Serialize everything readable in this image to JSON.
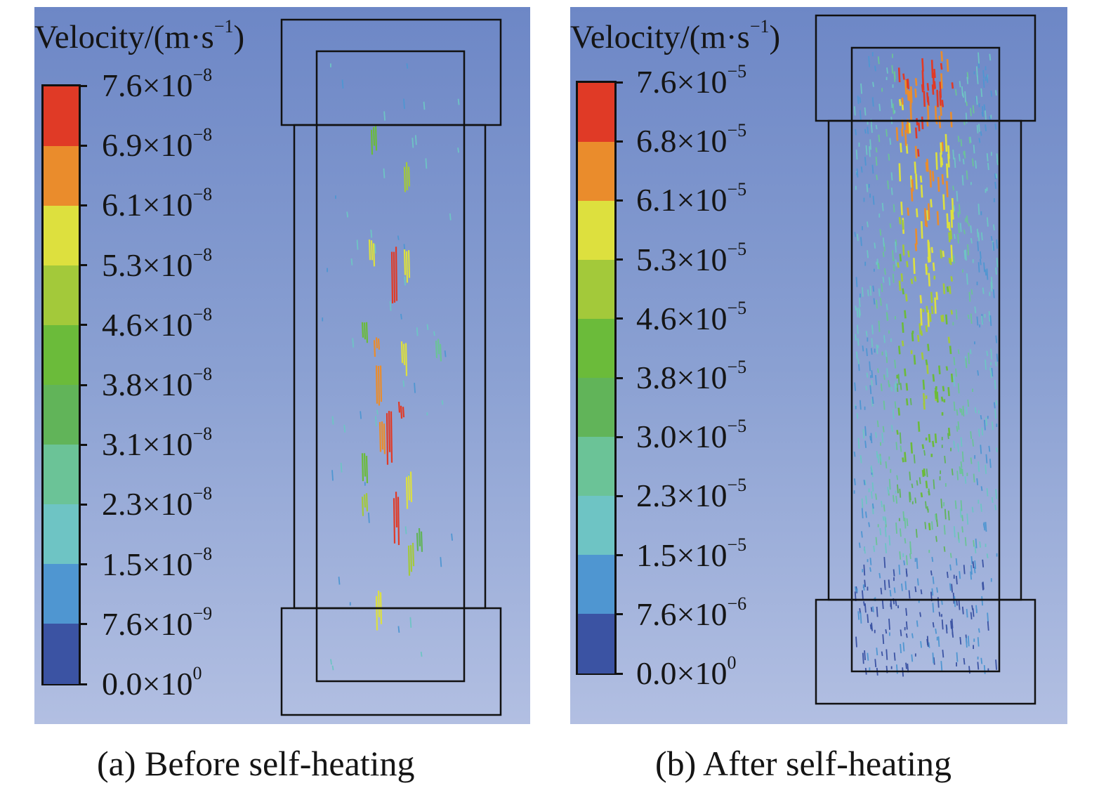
{
  "panels": [
    {
      "id": "a",
      "unit_title": {
        "text": "Velocity/(m·s",
        "exp": "−1",
        "close": ")"
      },
      "legend": {
        "labels": [
          {
            "mant": "7.6×10",
            "exp": "−8"
          },
          {
            "mant": "6.9×10",
            "exp": "−8"
          },
          {
            "mant": "6.1×10",
            "exp": "−8"
          },
          {
            "mant": "5.3×10",
            "exp": "−8"
          },
          {
            "mant": "4.6×10",
            "exp": "−8"
          },
          {
            "mant": "3.8×10",
            "exp": "−8"
          },
          {
            "mant": "3.1×10",
            "exp": "−8"
          },
          {
            "mant": "2.3×10",
            "exp": "−8"
          },
          {
            "mant": "1.5×10",
            "exp": "−8"
          },
          {
            "mant": "7.6×10",
            "exp": "−9"
          },
          {
            "mant": "0.0×10",
            "exp": "0"
          }
        ],
        "colors": [
          "#e03a26",
          "#ea8c2c",
          "#dde03e",
          "#a3c93a",
          "#6bbb3a",
          "#61b459",
          "#6bc397",
          "#6ec4c4",
          "#4f96d1",
          "#3b53a3"
        ]
      },
      "caption": "(a)  Before self-heating"
    },
    {
      "id": "b",
      "unit_title": {
        "text": "Velocity/(m·s",
        "exp": "−1",
        "close": ")"
      },
      "legend": {
        "labels": [
          {
            "mant": "7.6×10",
            "exp": "−5"
          },
          {
            "mant": "6.8×10",
            "exp": "−5"
          },
          {
            "mant": "6.1×10",
            "exp": "−5"
          },
          {
            "mant": "5.3×10",
            "exp": "−5"
          },
          {
            "mant": "4.6×10",
            "exp": "−5"
          },
          {
            "mant": "3.8×10",
            "exp": "−5"
          },
          {
            "mant": "3.0×10",
            "exp": "−5"
          },
          {
            "mant": "2.3×10",
            "exp": "−5"
          },
          {
            "mant": "1.5×10",
            "exp": "−5"
          },
          {
            "mant": "7.6×10",
            "exp": "−6"
          },
          {
            "mant": "0.0×10",
            "exp": "0"
          }
        ],
        "colors": [
          "#e03a26",
          "#ea8c2c",
          "#dde03e",
          "#a3c93a",
          "#6bbb3a",
          "#61b459",
          "#6bc397",
          "#6ec4c4",
          "#4f96d1",
          "#3b53a3"
        ]
      },
      "caption": "(b) After self-heating"
    }
  ]
}
